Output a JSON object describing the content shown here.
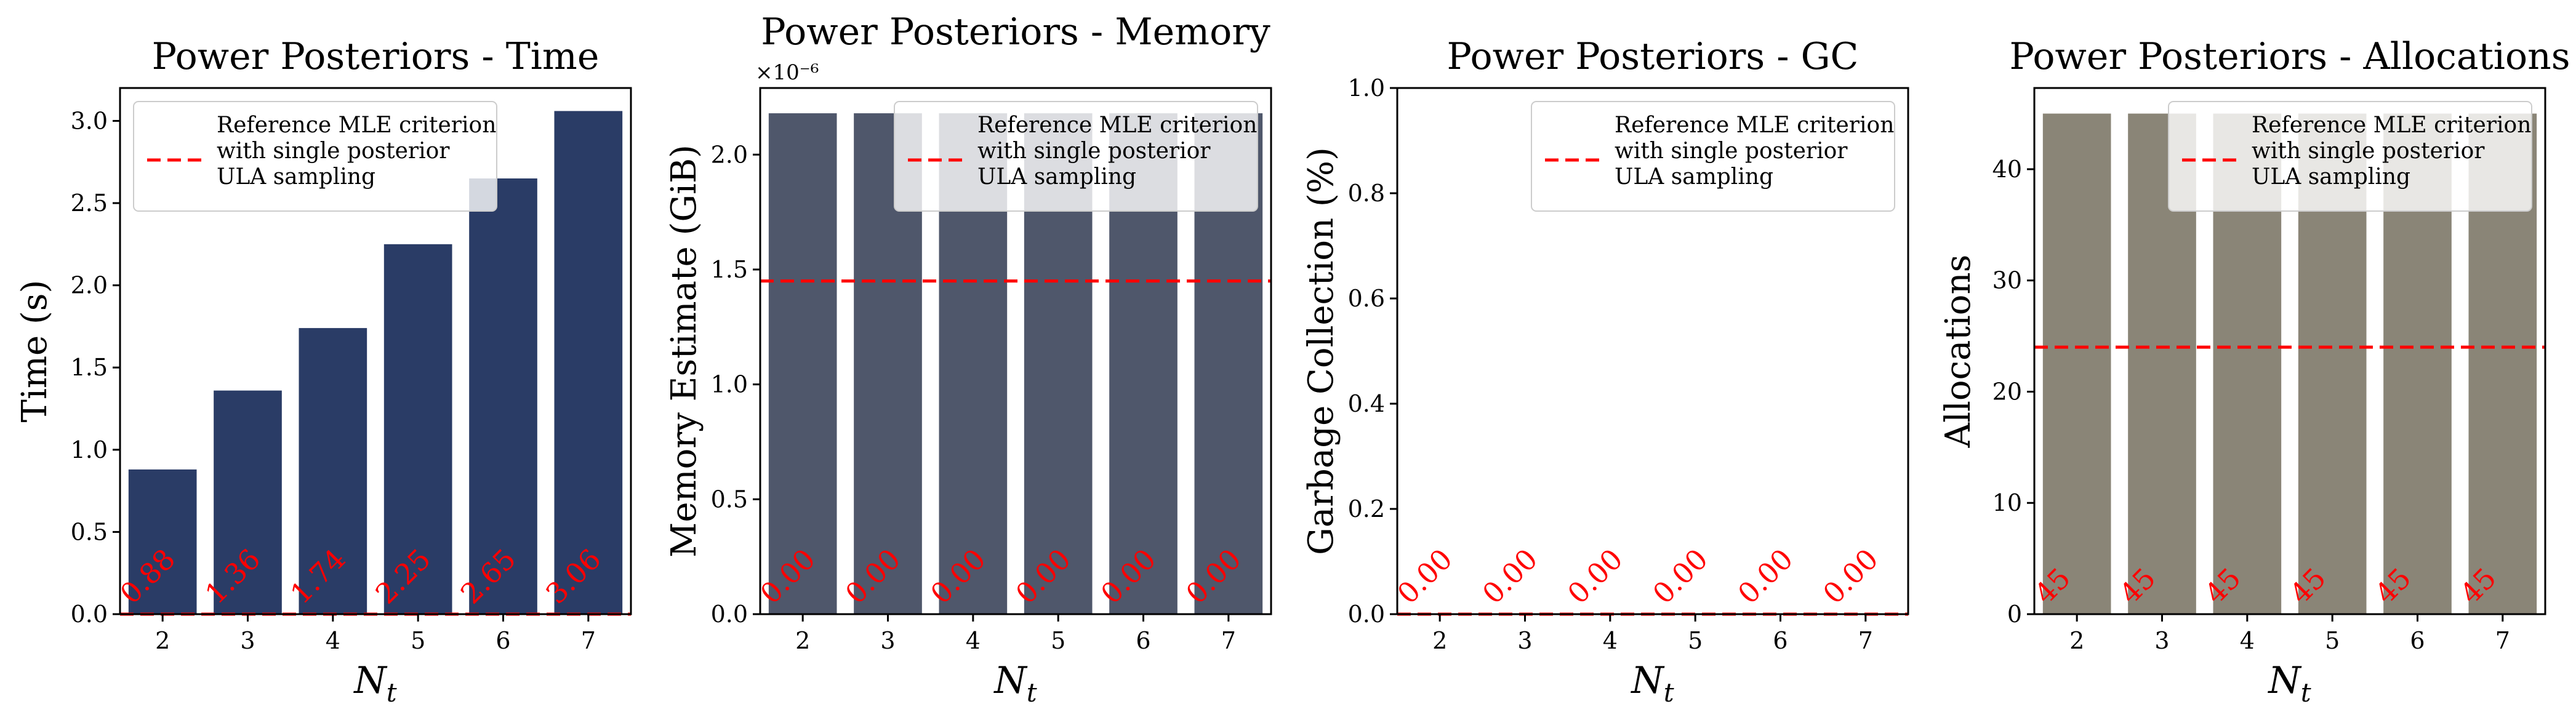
{
  "figure": {
    "legend_lines": [
      "Reference MLE criterion",
      "with single posterior",
      "ULA sampling"
    ],
    "xlabel_base": "N",
    "xlabel_sub": "t"
  },
  "chart_data": [
    {
      "type": "bar",
      "title": "Power Posteriors - Time",
      "ylabel": "Time (s)",
      "categories": [
        "2",
        "3",
        "4",
        "5",
        "6",
        "7"
      ],
      "values": [
        0.88,
        1.36,
        1.74,
        2.25,
        2.65,
        3.06
      ],
      "bar_labels": [
        "0.88",
        "1.36",
        "1.74",
        "2.25",
        "2.65",
        "3.06"
      ],
      "reference_line": 0.0,
      "ylim": [
        0,
        3.2
      ],
      "yticks": [
        0,
        0.5,
        1.0,
        1.5,
        2.0,
        2.5,
        3.0
      ],
      "ytick_labels": [
        "0.0",
        "0.5",
        "1.0",
        "1.5",
        "2.0",
        "2.5",
        "3.0"
      ],
      "offset_text": "",
      "legend_position": "upper-left",
      "bar_color": "#2a3c66"
    },
    {
      "type": "bar",
      "title": "Power Posteriors - Memory",
      "ylabel": "Memory Estimate (GiB)",
      "categories": [
        "2",
        "3",
        "4",
        "5",
        "6",
        "7"
      ],
      "values": [
        2.18,
        2.18,
        2.18,
        2.18,
        2.18,
        2.18
      ],
      "bar_labels": [
        "0.00",
        "0.00",
        "0.00",
        "0.00",
        "0.00",
        "0.00"
      ],
      "reference_line": 1.45,
      "ylim": [
        0,
        2.29
      ],
      "yticks": [
        0,
        0.5,
        1.0,
        1.5,
        2.0
      ],
      "ytick_labels": [
        "0.0",
        "0.5",
        "1.0",
        "1.5",
        "2.0"
      ],
      "offset_text": "×10⁻⁶",
      "legend_position": "upper-right",
      "bar_color": "#4f576b"
    },
    {
      "type": "bar",
      "title": "Power Posteriors - GC",
      "ylabel": "Garbage Collection (%)",
      "categories": [
        "2",
        "3",
        "4",
        "5",
        "6",
        "7"
      ],
      "values": [
        0,
        0,
        0,
        0,
        0,
        0
      ],
      "bar_labels": [
        "0.00",
        "0.00",
        "0.00",
        "0.00",
        "0.00",
        "0.00"
      ],
      "reference_line": 0.0,
      "ylim": [
        0,
        1.0
      ],
      "yticks": [
        0,
        0.2,
        0.4,
        0.6,
        0.8,
        1.0
      ],
      "ytick_labels": [
        "0.0",
        "0.2",
        "0.4",
        "0.6",
        "0.8",
        "1.0"
      ],
      "offset_text": "",
      "legend_position": "upper-right",
      "bar_color": "#4f576b"
    },
    {
      "type": "bar",
      "title": "Power Posteriors - Allocations",
      "ylabel": "Allocations",
      "categories": [
        "2",
        "3",
        "4",
        "5",
        "6",
        "7"
      ],
      "values": [
        45,
        45,
        45,
        45,
        45,
        45
      ],
      "bar_labels": [
        "45",
        "45",
        "45",
        "45",
        "45",
        "45"
      ],
      "reference_line": 24,
      "ylim": [
        0,
        47.3
      ],
      "yticks": [
        0,
        10,
        20,
        30,
        40
      ],
      "ytick_labels": [
        "0",
        "10",
        "20",
        "30",
        "40"
      ],
      "offset_text": "",
      "legend_position": "upper-right",
      "bar_color": "#8a8577"
    }
  ]
}
